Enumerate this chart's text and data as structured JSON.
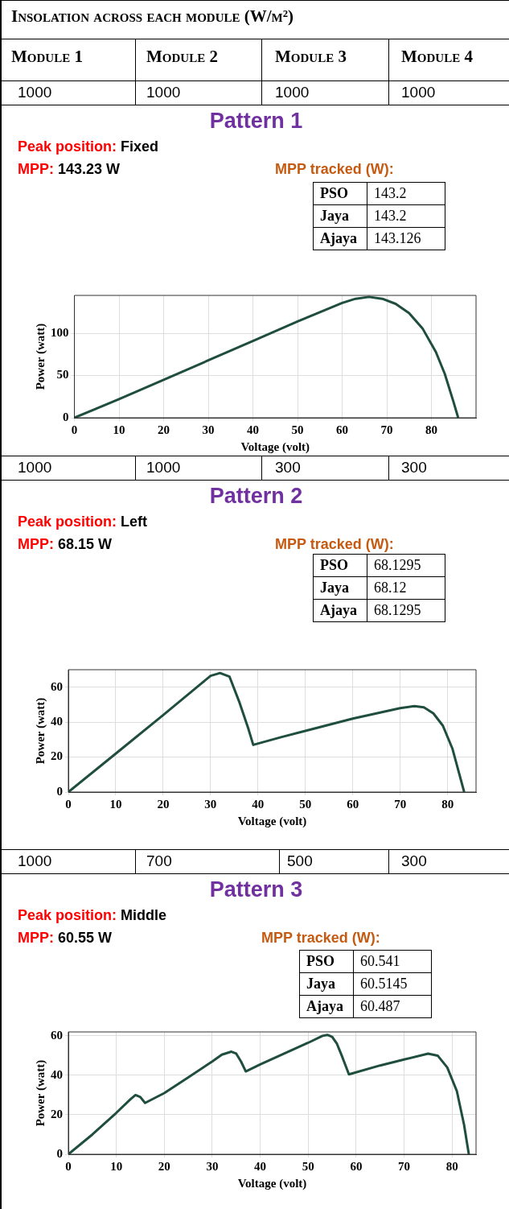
{
  "chart_data": [
    {
      "type": "other",
      "title": "Insolation across each module (W/m²)",
      "annotations": [
        "Module 1",
        "Module 2",
        "Module 3",
        "Module 4"
      ]
    },
    {
      "type": "line",
      "title": "Pattern 1",
      "xlabel": "Voltage (volt)",
      "ylabel": "Power (watt)",
      "annotations": [
        "1000",
        "1000",
        "1000",
        "1000",
        "Peak position: Fixed",
        "MPP: 143.23 W",
        "MPP tracked (W):",
        "PSO",
        "143.2",
        "Jaya",
        "143.2",
        "Ajaya",
        "143.126"
      ],
      "xlim": [
        0,
        90
      ],
      "xticks": [
        0,
        10,
        20,
        30,
        40,
        50,
        60,
        70,
        80
      ],
      "ylim": [
        0,
        145
      ],
      "yticks": [
        0,
        50,
        100
      ],
      "grid": true,
      "series": [
        {
          "color": "#1f4e3d",
          "x": [
            0,
            10,
            20,
            30,
            40,
            50,
            55,
            60,
            63,
            66,
            69,
            72,
            75,
            78,
            81,
            83,
            85,
            86
          ],
          "values": [
            0,
            22,
            45,
            68,
            91,
            114,
            125,
            136,
            141,
            143.2,
            141,
            135,
            124,
            106,
            78,
            52,
            18,
            0
          ]
        }
      ]
    },
    {
      "type": "line",
      "title": "Pattern 2",
      "xlabel": "Voltage (volt)",
      "ylabel": "Power (watt)",
      "annotations": [
        "1000",
        "1000",
        "300",
        "300",
        "Peak position: Left",
        "MPP: 68.15 W",
        "MPP tracked (W):",
        "PSO",
        "68.1295",
        "Jaya",
        "68.12",
        "Ajaya",
        "68.1295"
      ],
      "xlim": [
        0,
        86
      ],
      "xticks": [
        0,
        10,
        20,
        30,
        40,
        50,
        60,
        70,
        80
      ],
      "ylim": [
        0,
        70
      ],
      "yticks": [
        0,
        20,
        40,
        60
      ],
      "grid": true,
      "series": [
        {
          "color": "#1f4e3d",
          "x": [
            0,
            10,
            20,
            28,
            30,
            32,
            34,
            36,
            38,
            39,
            45,
            50,
            60,
            70,
            73,
            75,
            77,
            79,
            81,
            82,
            83.5
          ],
          "values": [
            0,
            22,
            44,
            62,
            66.5,
            68.1,
            66,
            52,
            36,
            27,
            31.5,
            35,
            42,
            48,
            49.2,
            48.5,
            45,
            38,
            25,
            15,
            0
          ]
        }
      ]
    },
    {
      "type": "line",
      "title": "Pattern 3",
      "xlabel": "Voltage (volt)",
      "ylabel": "Power (watt)",
      "annotations": [
        "1000",
        "700",
        "500",
        "300",
        "Peak position: Middle",
        "MPP: 60.55 W",
        "MPP tracked (W):",
        "PSO",
        "60.541",
        "Jaya",
        "60.5145",
        "Ajaya",
        "60.487"
      ],
      "xlim": [
        0,
        85
      ],
      "xticks": [
        0,
        10,
        20,
        30,
        40,
        50,
        60,
        70,
        80
      ],
      "ylim": [
        0,
        62
      ],
      "yticks": [
        0,
        20,
        40,
        60
      ],
      "grid": true,
      "series": [
        {
          "color": "#1f4e3d",
          "x": [
            0,
            5,
            10,
            13,
            14,
            15,
            16,
            20,
            25,
            30,
            32,
            34,
            35,
            36,
            37,
            40,
            45,
            50,
            53,
            54,
            55,
            56,
            57,
            58.5,
            65,
            70,
            75,
            77,
            79,
            81,
            82.5,
            83.5
          ],
          "values": [
            0,
            10,
            21,
            28,
            30,
            29,
            26,
            31,
            39,
            47,
            50.5,
            52,
            51,
            47,
            42,
            45.5,
            51,
            56.5,
            60,
            60.5,
            59.5,
            56,
            50,
            40.5,
            45,
            48,
            51,
            50,
            44,
            32,
            15,
            0
          ]
        }
      ]
    }
  ]
}
